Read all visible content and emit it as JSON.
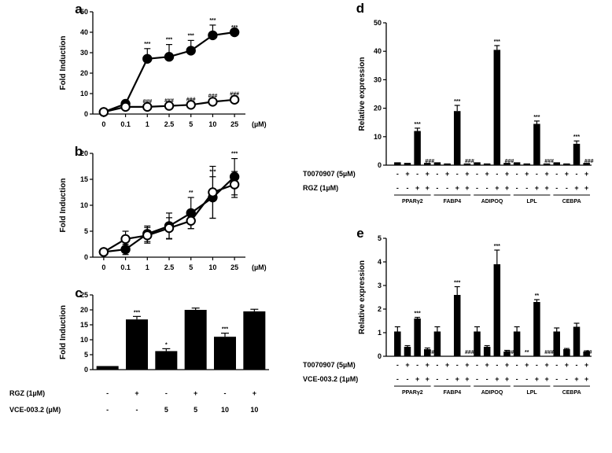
{
  "chart_data": [
    {
      "id": "a",
      "type": "line",
      "panel_label": "a",
      "ylabel": "Fold Induction",
      "x_unit": "(µM)",
      "categories": [
        "0",
        "0.1",
        "1",
        "2.5",
        "5",
        "10",
        "25"
      ],
      "ylim": [
        0,
        50
      ],
      "yticks": [
        0,
        10,
        20,
        30,
        40,
        50
      ],
      "series": [
        {
          "name": "filled",
          "marker": "filled",
          "values": [
            1,
            5,
            27,
            28,
            31,
            38.5,
            40
          ],
          "errors": [
            0,
            0,
            5,
            6,
            5,
            5,
            0
          ],
          "annotations": [
            "",
            "",
            "***",
            "***",
            "***",
            "***",
            "***"
          ]
        },
        {
          "name": "open",
          "marker": "open",
          "values": [
            1,
            3.5,
            3.5,
            4,
            4.5,
            6,
            7
          ],
          "errors": [
            0,
            0.5,
            0.3,
            0.3,
            0.3,
            0.5,
            0.5
          ],
          "annotations": [
            "",
            "",
            "###",
            "###",
            "###",
            "###",
            "###"
          ]
        }
      ]
    },
    {
      "id": "b",
      "type": "line",
      "panel_label": "b",
      "ylabel": "Fold Induction",
      "x_unit": "(µM)",
      "categories": [
        "0",
        "0.1",
        "1",
        "2.5",
        "5",
        "10",
        "25"
      ],
      "ylim": [
        0,
        20
      ],
      "yticks": [
        0,
        5,
        10,
        15,
        20
      ],
      "series": [
        {
          "name": "filled",
          "marker": "filled",
          "values": [
            1,
            1.5,
            4.5,
            6,
            8.5,
            11.5,
            15.5
          ],
          "errors": [
            0.3,
            1,
            1.5,
            2.5,
            3,
            4,
            3.5
          ],
          "annotations": [
            "",
            "",
            "",
            "",
            "**",
            "***",
            "***"
          ]
        },
        {
          "name": "open",
          "marker": "open",
          "values": [
            1,
            3.5,
            4.2,
            5.6,
            7,
            12.5,
            14
          ],
          "errors": [
            0.3,
            1.5,
            1.5,
            2,
            1.5,
            5,
            2.5
          ],
          "annotations": [
            "",
            "",
            "",
            "",
            "",
            "",
            ""
          ]
        }
      ]
    },
    {
      "id": "c",
      "type": "bar",
      "panel_label": "c",
      "ylabel": "Fold Induction",
      "ylim": [
        0,
        25
      ],
      "yticks": [
        0,
        5,
        10,
        15,
        20,
        25
      ],
      "values": [
        1.2,
        16.8,
        6.2,
        20,
        11,
        19.5
      ],
      "errors": [
        0,
        1,
        0.8,
        0.6,
        1.2,
        0.7
      ],
      "annotations": [
        "",
        "***",
        "*",
        "",
        "***",
        ""
      ],
      "rows": [
        {
          "label": "RGZ (1µM)",
          "values": [
            "-",
            "+",
            "-",
            "+",
            "-",
            "+"
          ]
        },
        {
          "label": "VCE-003.2 (µM)",
          "values": [
            "-",
            "-",
            "5",
            "5",
            "10",
            "10"
          ]
        }
      ]
    },
    {
      "id": "d",
      "type": "bar",
      "panel_label": "d",
      "ylabel": "Relative expression",
      "ylim": [
        0,
        50
      ],
      "yticks": [
        0,
        10,
        20,
        30,
        40,
        50
      ],
      "groups": [
        {
          "name": "PPARγ2",
          "values": [
            1,
            0.8,
            12,
            0.8
          ],
          "errors": [
            0,
            0,
            1,
            0
          ],
          "annotations": [
            "",
            "",
            "***",
            "###"
          ]
        },
        {
          "name": "FABP4",
          "values": [
            1,
            0.6,
            19,
            0.6
          ],
          "errors": [
            0,
            0,
            2,
            0
          ],
          "annotations": [
            "",
            "",
            "***",
            "###"
          ]
        },
        {
          "name": "ADIPOQ",
          "values": [
            1,
            0.6,
            40.5,
            0.8
          ],
          "errors": [
            0,
            0,
            1.5,
            0
          ],
          "annotations": [
            "",
            "",
            "***",
            "###"
          ]
        },
        {
          "name": "LPL",
          "values": [
            1,
            0.6,
            14.5,
            0.6
          ],
          "errors": [
            0,
            0,
            1,
            0
          ],
          "annotations": [
            "",
            "",
            "***",
            "###"
          ]
        },
        {
          "name": "CEBPA",
          "values": [
            1,
            0.6,
            7.5,
            0.8
          ],
          "errors": [
            0,
            0,
            1,
            0
          ],
          "annotations": [
            "",
            "",
            "***",
            "###"
          ]
        }
      ],
      "rows": [
        {
          "label": "T0070907 (5µM)",
          "values": [
            "-",
            "+",
            "-",
            "+"
          ]
        },
        {
          "label": "RGZ (1µM)",
          "values": [
            "-",
            "-",
            "+",
            "+"
          ]
        }
      ]
    },
    {
      "id": "e",
      "type": "bar",
      "panel_label": "e",
      "ylabel": "Relative expression",
      "ylim": [
        0,
        5
      ],
      "yticks": [
        0,
        1,
        2,
        3,
        4,
        5
      ],
      "groups": [
        {
          "name": "PPARγ2",
          "values": [
            1.05,
            0.4,
            1.6,
            0.3
          ],
          "errors": [
            0.2,
            0.05,
            0.05,
            0.05
          ],
          "annotations": [
            "",
            "",
            "***",
            "###"
          ]
        },
        {
          "name": "FABP4",
          "values": [
            1.05,
            0,
            2.6,
            0
          ],
          "errors": [
            0.2,
            0,
            0.35,
            0
          ],
          "annotations": [
            "",
            "",
            "***",
            "###"
          ]
        },
        {
          "name": "ADIPOQ",
          "values": [
            1.05,
            0.4,
            3.9,
            0.2
          ],
          "errors": [
            0.2,
            0.05,
            0.6,
            0.05
          ],
          "annotations": [
            "",
            "",
            "***",
            "###"
          ]
        },
        {
          "name": "LPL",
          "values": [
            1.05,
            0,
            2.3,
            0
          ],
          "errors": [
            0.2,
            0,
            0.1,
            0
          ],
          "annotations": [
            "",
            "**",
            "**",
            "###"
          ]
        },
        {
          "name": "CEBPA",
          "values": [
            1.05,
            0.3,
            1.25,
            0.2
          ],
          "errors": [
            0.15,
            0.03,
            0.15,
            0.03
          ],
          "annotations": [
            "",
            "*",
            "",
            "##"
          ]
        }
      ],
      "rows": [
        {
          "label": "T0070907 (5µM)",
          "values": [
            "-",
            "+",
            "-",
            "+"
          ]
        },
        {
          "label": "VCE-003.2 (1µM)",
          "values": [
            "-",
            "-",
            "+",
            "+"
          ]
        }
      ]
    }
  ]
}
